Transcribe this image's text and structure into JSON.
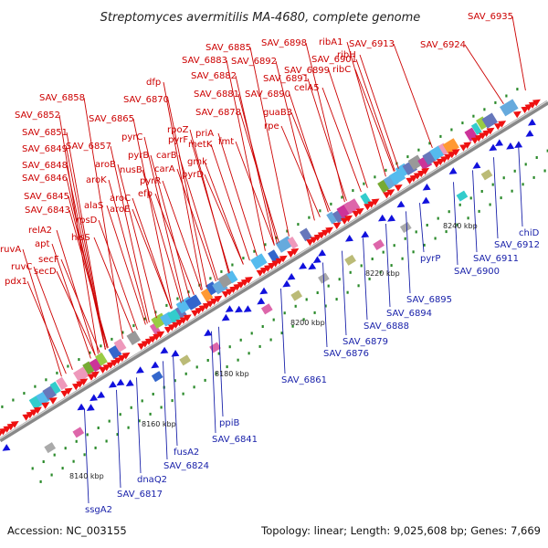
{
  "title": "Streptomyces avermitilis MA-4680, complete genome",
  "footer": {
    "accession": "Accession: NC_003155",
    "topology": "Topology: linear; Length: 9,025,608 bp; Genes: 7,669"
  },
  "colors": {
    "forward_label": "#cc0000",
    "reverse_label": "#1a22aa",
    "forward_arrow": "#ee1111",
    "reverse_arrow": "#1111dd",
    "backbone": "#888888",
    "tick": "#2a8a2a"
  },
  "scale_ticks": [
    "8140 kbp",
    "8160 kbp",
    "8180 kbp",
    "8200 kbp",
    "8220 kbp",
    "8240 kbp"
  ],
  "forward_genes": [
    "SAV_6935",
    "SAV_6924",
    "SAV_6913",
    "ribA1",
    "ribH",
    "ribC",
    "SAV_6898",
    "SAV_6901",
    "SAV_6899",
    "SAV_6885",
    "SAV_6883",
    "SAV_6892",
    "SAV_6891",
    "celA5",
    "SAV_6882",
    "SAV_6890",
    "dfp",
    "SAV_6881",
    "guaB3",
    "SAV_6858",
    "SAV_6870",
    "SAV_6878",
    "rpe",
    "SAV_6852",
    "SAV_6865",
    "rpoZ",
    "priA",
    "pyrF",
    "metK",
    "fmt",
    "SAV_6851",
    "SAV_6857",
    "pyrC",
    "carB",
    "gmk",
    "SAV_6849",
    "pyrB",
    "carA",
    "pyrD",
    "aroB",
    "nusB",
    "SAV_6848",
    "aroK",
    "pyrR",
    "SAV_6846",
    "efp",
    "alaS",
    "aroC",
    "SAV_6845",
    "aroE",
    "rpsD",
    "SAV_6843",
    "relA2",
    "hisS",
    "apt",
    "ruvA",
    "secF",
    "ruvC",
    "secD",
    "pdx1"
  ],
  "reverse_genes": [
    "chiD",
    "SAV_6912",
    "SAV_6911",
    "SAV_6900",
    "pyrP",
    "SAV_6895",
    "SAV_6894",
    "SAV_6888",
    "SAV_6879",
    "SAV_6876",
    "SAV_6861",
    "ppiB",
    "SAV_6841",
    "fusA2",
    "SAV_6824",
    "dnaQ2",
    "SAV_6817",
    "ssgA2"
  ]
}
